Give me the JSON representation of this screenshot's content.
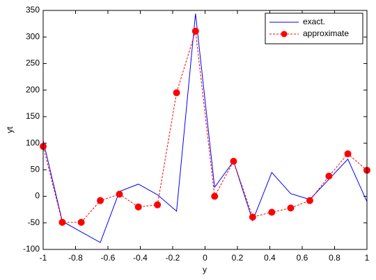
{
  "chart_data": {
    "type": "line",
    "x": [
      -1,
      -0.882,
      -0.765,
      -0.647,
      -0.529,
      -0.412,
      -0.294,
      -0.176,
      -0.059,
      0.059,
      0.176,
      0.294,
      0.412,
      0.529,
      0.647,
      0.765,
      0.882,
      1
    ],
    "series": [
      {
        "name": "exact.",
        "color": "#0000ff",
        "dash": false,
        "marker": false,
        "values": [
          105,
          -47,
          -67,
          -87,
          9,
          23,
          3,
          -28,
          344,
          17,
          66,
          -46,
          45,
          5,
          -6,
          32,
          70,
          -10
        ]
      },
      {
        "name": "approximate",
        "color": "#ff0000",
        "dash": true,
        "marker": true,
        "values": [
          94,
          -49,
          -49,
          -8,
          4,
          -20,
          -16,
          195,
          311,
          0,
          66,
          -39,
          -30,
          -22,
          -8,
          38,
          80,
          49
        ]
      }
    ],
    "xlabel": "y",
    "ylabel": "yt",
    "xlim": [
      -1,
      1
    ],
    "ylim": [
      -100,
      350
    ],
    "xticks": [
      -1,
      -0.8,
      -0.6,
      -0.4,
      -0.2,
      0,
      0.2,
      0.4,
      0.6,
      0.8,
      1
    ],
    "yticks": [
      -100,
      -50,
      0,
      50,
      100,
      150,
      200,
      250,
      300,
      350
    ],
    "grid": false,
    "legend": "top-right"
  }
}
